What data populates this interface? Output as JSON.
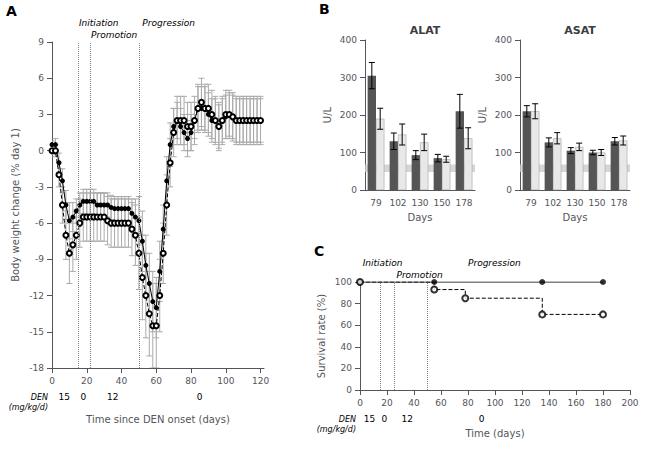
{
  "chart_data": [
    {
      "type": "line",
      "panel_label": "A",
      "xlabel": "Time since DEN onset (days)",
      "ylabel": "Body weight change (% day 1)",
      "xlim": [
        0,
        122
      ],
      "ylim": [
        -18,
        9
      ],
      "xticks": [
        0,
        20,
        40,
        60,
        80,
        100,
        120
      ],
      "yticks": [
        -18,
        -15,
        -12,
        -9,
        -6,
        -3,
        0,
        3,
        6,
        9
      ],
      "grid": false,
      "vlines": [
        15,
        22,
        50
      ],
      "stage_labels": [
        {
          "text": "Initiation",
          "x": 15.5
        },
        {
          "text": "Promotion",
          "x": 22.5
        },
        {
          "text": "Progression",
          "x": 52
        }
      ],
      "dose_title": "DEN\n(mg/kg/d)",
      "dose_labels": [
        {
          "text": "15",
          "x": 7
        },
        {
          "text": "0",
          "x": 18
        },
        {
          "text": "12",
          "x": 35
        },
        {
          "text": "0",
          "x": 85
        }
      ],
      "series": [
        {
          "color": "black",
          "marker": "circle",
          "line_style": "solid",
          "x": [
            0,
            2,
            4,
            6,
            8,
            10,
            12,
            14,
            16,
            18,
            20,
            22,
            24,
            26,
            28,
            30,
            32,
            34,
            36,
            38,
            40,
            42,
            44,
            46,
            48,
            50,
            52,
            54,
            56,
            58,
            60,
            62,
            64,
            66,
            68,
            70,
            72,
            74,
            76,
            78,
            80,
            82,
            84,
            86,
            88,
            90,
            92,
            94,
            96,
            98,
            100,
            102,
            104,
            106,
            108,
            110,
            112,
            114,
            116,
            118,
            120
          ],
          "values": [
            0.5,
            0.5,
            -1.0,
            -2.5,
            -4.5,
            -5.8,
            -5.5,
            -5.0,
            -4.5,
            -4.2,
            -4.2,
            -4.2,
            -4.2,
            -4.5,
            -4.5,
            -4.5,
            -4.5,
            -4.7,
            -4.8,
            -4.8,
            -4.8,
            -4.8,
            -4.8,
            -5.2,
            -5.5,
            -5.8,
            -7.5,
            -9.5,
            -11.0,
            -12.5,
            -13.0,
            -10.0,
            -6.5,
            -2.5,
            0.5,
            2.0,
            2.5,
            2.0,
            1.5,
            1.0,
            1.5,
            2.5,
            3.5,
            3.5,
            3.5,
            3.0,
            2.5,
            2.5,
            2.0,
            2.5,
            2.8,
            3.0,
            2.8,
            2.5,
            2.5,
            2.5,
            2.5,
            2.5,
            2.5,
            2.5,
            2.5
          ],
          "errors": [
            0.3,
            0.5,
            0.8,
            1.0,
            1.2,
            1.5,
            1.2,
            1.0,
            1.0,
            1.0,
            1.0,
            1.0,
            1.0,
            1.0,
            1.0,
            1.0,
            1.0,
            1.0,
            1.0,
            1.0,
            1.0,
            1.0,
            1.0,
            1.2,
            1.5,
            2.0,
            2.5,
            2.5,
            2.5,
            2.5,
            2.5,
            2.5,
            2.0,
            2.0,
            1.8,
            1.5,
            1.5,
            1.5,
            1.5,
            1.5,
            1.5,
            1.5,
            1.8,
            1.8,
            1.8,
            1.8,
            1.8,
            1.8,
            1.8,
            1.8,
            1.8,
            1.8,
            1.8,
            1.8,
            1.8,
            1.8,
            1.8,
            1.8,
            1.8,
            1.8,
            1.8
          ]
        },
        {
          "color": "black",
          "marker": "open_circle",
          "line_style": "dashed",
          "x": [
            0,
            2,
            4,
            6,
            8,
            10,
            12,
            14,
            16,
            18,
            20,
            22,
            24,
            26,
            28,
            30,
            32,
            34,
            36,
            38,
            40,
            42,
            44,
            46,
            48,
            50,
            52,
            54,
            56,
            58,
            60,
            62,
            64,
            66,
            68,
            70,
            72,
            74,
            76,
            78,
            80,
            82,
            84,
            86,
            88,
            90,
            92,
            94,
            96,
            98,
            100,
            102,
            104,
            106,
            108,
            110,
            112,
            114,
            116,
            118,
            120
          ],
          "values": [
            0.0,
            0.0,
            -2.0,
            -4.5,
            -7.0,
            -8.5,
            -7.8,
            -7.0,
            -6.0,
            -5.5,
            -5.5,
            -5.5,
            -5.5,
            -5.5,
            -5.5,
            -5.5,
            -5.8,
            -6.0,
            -6.0,
            -6.0,
            -6.0,
            -6.0,
            -6.0,
            -6.5,
            -7.0,
            -8.5,
            -10.5,
            -12.0,
            -13.5,
            -14.5,
            -14.5,
            -12.0,
            -8.5,
            -4.5,
            -1.0,
            1.5,
            2.5,
            2.5,
            2.5,
            2.0,
            2.0,
            2.5,
            3.5,
            4.0,
            3.5,
            3.5,
            3.0,
            2.5,
            2.0,
            2.5,
            3.0,
            3.0,
            2.8,
            2.5,
            2.5,
            2.5,
            2.5,
            2.5,
            2.5,
            2.5,
            2.5
          ],
          "errors": [
            0.3,
            0.5,
            1.0,
            1.5,
            2.0,
            2.5,
            2.2,
            2.0,
            2.0,
            2.0,
            2.0,
            2.0,
            2.0,
            2.0,
            2.0,
            2.0,
            2.0,
            2.0,
            2.0,
            2.0,
            2.0,
            2.0,
            2.0,
            2.2,
            2.5,
            3.0,
            3.5,
            3.5,
            3.5,
            3.5,
            3.5,
            3.0,
            2.5,
            2.5,
            2.0,
            2.0,
            2.0,
            2.0,
            2.0,
            2.0,
            2.0,
            2.0,
            2.0,
            2.0,
            2.0,
            2.0,
            2.0,
            2.0,
            2.0,
            2.0,
            2.0,
            2.0,
            2.0,
            2.0,
            2.0,
            2.0,
            2.0,
            2.0,
            2.0,
            2.0,
            2.0
          ]
        }
      ]
    },
    {
      "type": "bar",
      "panel_label": "B",
      "title": "ALAT",
      "xlabel": "Days",
      "ylabel": "U/L",
      "categories": [
        "79",
        "102",
        "130",
        "150",
        "178"
      ],
      "ylim": [
        0,
        400
      ],
      "yticks": [
        0,
        100,
        200,
        300,
        400
      ],
      "grid": false,
      "reference_band": [
        48,
        68
      ],
      "series": [
        {
          "color": "#555555",
          "values": [
            305,
            130,
            93,
            85,
            210
          ],
          "errors": [
            35,
            22,
            12,
            10,
            45
          ]
        },
        {
          "color": "#e8e8e8",
          "values": [
            190,
            148,
            127,
            82,
            138
          ],
          "errors": [
            28,
            28,
            22,
            8,
            28
          ]
        }
      ]
    },
    {
      "type": "bar",
      "title": "ASAT",
      "xlabel": "Days",
      "ylabel": "U/L",
      "categories": [
        "79",
        "102",
        "130",
        "150",
        "178"
      ],
      "ylim": [
        0,
        400
      ],
      "yticks": [
        0,
        100,
        200,
        300,
        400
      ],
      "grid": false,
      "reference_band": [
        48,
        68
      ],
      "series": [
        {
          "color": "#555555",
          "values": [
            210,
            127,
            105,
            100,
            130
          ],
          "errors": [
            15,
            12,
            8,
            6,
            10
          ]
        },
        {
          "color": "#e8e8e8",
          "values": [
            210,
            138,
            115,
            100,
            132
          ],
          "errors": [
            20,
            15,
            10,
            8,
            12
          ]
        }
      ]
    },
    {
      "type": "line",
      "panel_label": "C",
      "xlabel": "Time (days)",
      "ylabel": "Survival rate (%)",
      "xlim": [
        0,
        200
      ],
      "ylim": [
        0,
        100
      ],
      "xticks": [
        0,
        20,
        40,
        60,
        80,
        100,
        120,
        140,
        160,
        180,
        200
      ],
      "yticks": [
        0,
        20,
        40,
        60,
        80,
        100
      ],
      "grid": false,
      "vlines": [
        15,
        25,
        50
      ],
      "stage_labels": [
        {
          "text": "Initiation",
          "x": 2
        },
        {
          "text": "Promotion",
          "x": 27
        },
        {
          "text": "Progression",
          "x": 80
        }
      ],
      "dose_title": "DEN\n(mg/kg/d)",
      "dose_labels": [
        {
          "text": "15",
          "x": 7
        },
        {
          "text": "0",
          "x": 18
        },
        {
          "text": "12",
          "x": 35
        },
        {
          "text": "0",
          "x": 90
        }
      ],
      "series": [
        {
          "color": "black",
          "marker": "circle",
          "line_style": "solid",
          "x": [
            0,
            55,
            55,
            135,
            135,
            180
          ],
          "values": [
            100,
            100,
            100,
            100,
            100,
            100
          ],
          "markers": [
            [
              0,
              100
            ],
            [
              55,
              100
            ],
            [
              135,
              100
            ],
            [
              180,
              100
            ]
          ]
        },
        {
          "color": "black",
          "marker": "open_circle",
          "line_style": "dashed",
          "x": [
            0,
            55,
            55,
            78,
            78,
            90,
            90,
            135,
            135,
            180
          ],
          "values": [
            100,
            100,
            93,
            93,
            85,
            85,
            85,
            85,
            70,
            70
          ],
          "markers": [
            [
              0,
              100
            ],
            [
              55,
              93
            ],
            [
              78,
              85
            ],
            [
              135,
              70
            ],
            [
              180,
              70
            ]
          ]
        }
      ]
    }
  ]
}
